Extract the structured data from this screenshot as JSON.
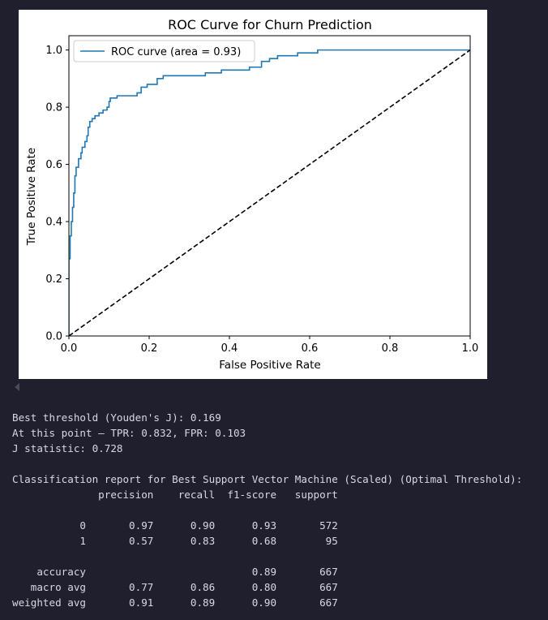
{
  "output": {
    "text_lines": [
      "Best threshold (Youden's J): 0.169",
      "At this point — TPR: 0.832, FPR: 0.103",
      "J statistic: 0.728",
      "",
      "Classification report for Best Support Vector Machine (Scaled) (Optimal Threshold):",
      "              precision    recall  f1-score   support",
      "",
      "           0       0.97      0.90      0.93       572",
      "           1       0.57      0.83      0.68        95",
      "",
      "    accuracy                           0.89       667",
      "   macro avg       0.77      0.86      0.80       667",
      "weighted avg       0.91      0.89      0.90       667"
    ]
  },
  "chart_data": {
    "type": "line",
    "title": "ROC Curve for Churn Prediction",
    "xlabel": "False Positive Rate",
    "ylabel": "True Positive Rate",
    "xlim": [
      0.0,
      1.0
    ],
    "ylim": [
      0.0,
      1.05
    ],
    "xticks": [
      "0.0",
      "0.2",
      "0.4",
      "0.6",
      "0.8",
      "1.0"
    ],
    "yticks": [
      "0.0",
      "0.2",
      "0.4",
      "0.6",
      "0.8",
      "1.0"
    ],
    "grid": false,
    "legend_position": "upper-left",
    "colors": {
      "roc": "#1f77b4",
      "diagonal": "#000000"
    },
    "series": [
      {
        "name": "ROC curve (area = 0.93)",
        "style": "solid",
        "points": [
          [
            0.0,
            0.0
          ],
          [
            0.0,
            0.27
          ],
          [
            0.003,
            0.27
          ],
          [
            0.003,
            0.35
          ],
          [
            0.006,
            0.35
          ],
          [
            0.006,
            0.4
          ],
          [
            0.009,
            0.4
          ],
          [
            0.009,
            0.45
          ],
          [
            0.012,
            0.45
          ],
          [
            0.012,
            0.5
          ],
          [
            0.015,
            0.5
          ],
          [
            0.015,
            0.56
          ],
          [
            0.018,
            0.56
          ],
          [
            0.018,
            0.59
          ],
          [
            0.024,
            0.59
          ],
          [
            0.024,
            0.62
          ],
          [
            0.03,
            0.62
          ],
          [
            0.03,
            0.64
          ],
          [
            0.033,
            0.64
          ],
          [
            0.033,
            0.66
          ],
          [
            0.04,
            0.66
          ],
          [
            0.04,
            0.68
          ],
          [
            0.045,
            0.68
          ],
          [
            0.045,
            0.7
          ],
          [
            0.048,
            0.7
          ],
          [
            0.048,
            0.73
          ],
          [
            0.052,
            0.73
          ],
          [
            0.052,
            0.75
          ],
          [
            0.058,
            0.75
          ],
          [
            0.058,
            0.76
          ],
          [
            0.065,
            0.76
          ],
          [
            0.065,
            0.77
          ],
          [
            0.075,
            0.77
          ],
          [
            0.075,
            0.78
          ],
          [
            0.085,
            0.78
          ],
          [
            0.085,
            0.79
          ],
          [
            0.095,
            0.79
          ],
          [
            0.095,
            0.8
          ],
          [
            0.1,
            0.8
          ],
          [
            0.1,
            0.82
          ],
          [
            0.103,
            0.82
          ],
          [
            0.103,
            0.832
          ],
          [
            0.12,
            0.832
          ],
          [
            0.12,
            0.84
          ],
          [
            0.17,
            0.84
          ],
          [
            0.17,
            0.85
          ],
          [
            0.18,
            0.85
          ],
          [
            0.18,
            0.87
          ],
          [
            0.195,
            0.87
          ],
          [
            0.195,
            0.88
          ],
          [
            0.22,
            0.88
          ],
          [
            0.22,
            0.9
          ],
          [
            0.235,
            0.9
          ],
          [
            0.235,
            0.91
          ],
          [
            0.34,
            0.91
          ],
          [
            0.34,
            0.92
          ],
          [
            0.38,
            0.92
          ],
          [
            0.38,
            0.93
          ],
          [
            0.45,
            0.93
          ],
          [
            0.45,
            0.94
          ],
          [
            0.48,
            0.94
          ],
          [
            0.48,
            0.96
          ],
          [
            0.5,
            0.96
          ],
          [
            0.5,
            0.97
          ],
          [
            0.52,
            0.97
          ],
          [
            0.52,
            0.98
          ],
          [
            0.57,
            0.98
          ],
          [
            0.57,
            0.99
          ],
          [
            0.62,
            0.99
          ],
          [
            0.62,
            1.0
          ],
          [
            1.0,
            1.0
          ]
        ]
      },
      {
        "name": "",
        "style": "dashed",
        "points": [
          [
            0.0,
            0.0
          ],
          [
            1.0,
            1.0
          ]
        ]
      }
    ]
  }
}
